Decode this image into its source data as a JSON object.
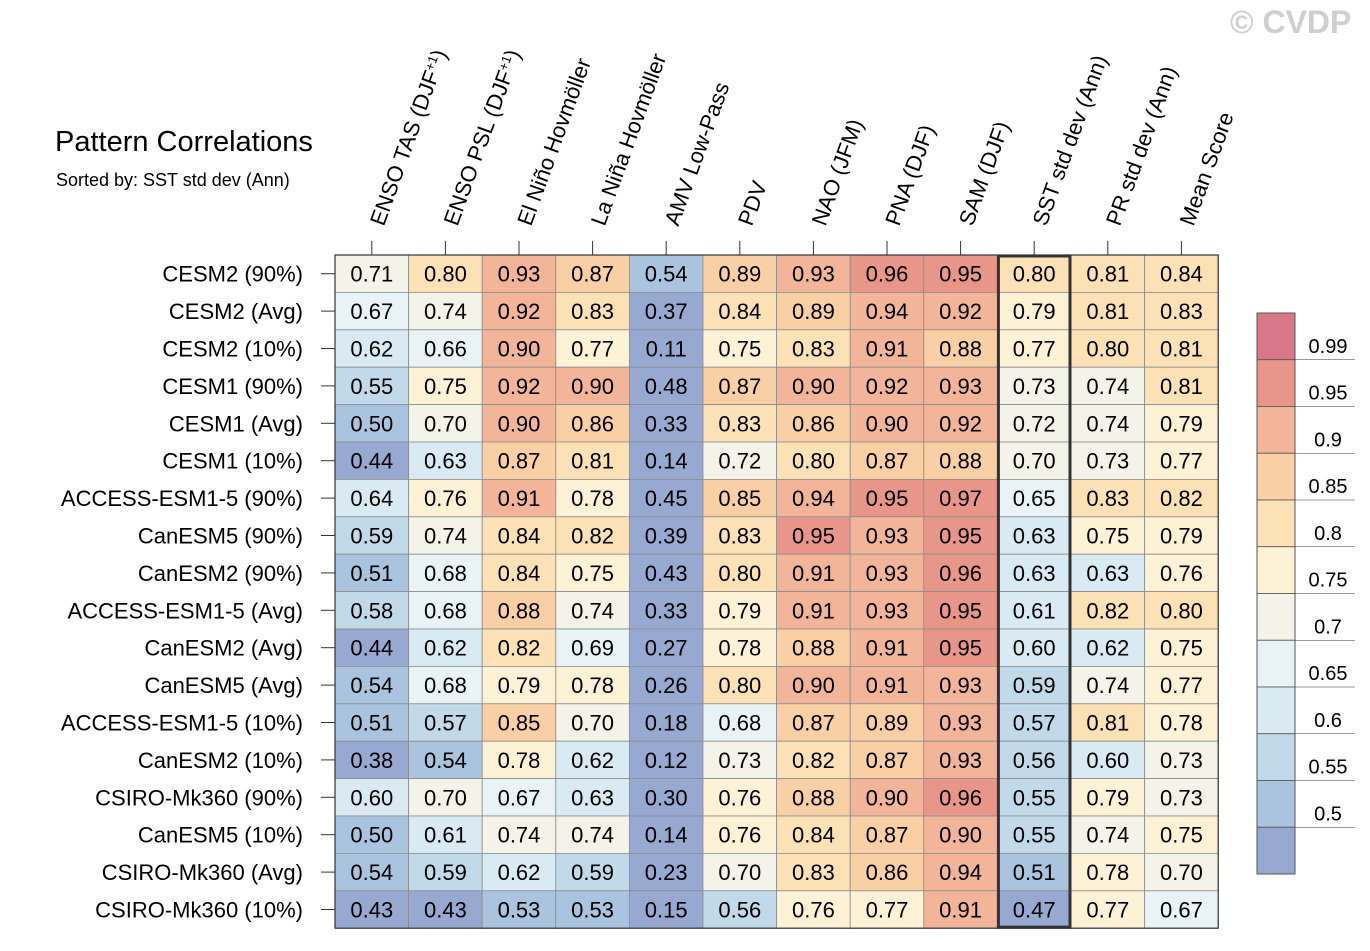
{
  "watermark": "© CVDP",
  "title": "Pattern Correlations",
  "subtitle": "Sorted by: SST std dev (Ann)",
  "chart_data": {
    "type": "heatmap",
    "columns": [
      "ENSO TAS (DJF+1)",
      "ENSO PSL (DJF+1)",
      "El Niño Hovmöller",
      "La Niña Hovmöller",
      "AMV Low-Pass",
      "PDV",
      "NAO (JFM)",
      "PNA (DJF)",
      "SAM (DJF)",
      "SST std dev (Ann)",
      "PR std dev (Ann)",
      "Mean Score"
    ],
    "column_labels": [
      {
        "main": "ENSO TAS (DJF",
        "sup": "+1",
        "tail": ")"
      },
      {
        "main": "ENSO PSL (DJF",
        "sup": "+1",
        "tail": ")"
      },
      {
        "main": "El Niño Hovmöller",
        "sup": "",
        "tail": ""
      },
      {
        "main": "La Niña Hovmöller",
        "sup": "",
        "tail": ""
      },
      {
        "main": "AMV Low-Pass",
        "sup": "",
        "tail": ""
      },
      {
        "main": "PDV",
        "sup": "",
        "tail": ""
      },
      {
        "main": "NAO (JFM)",
        "sup": "",
        "tail": ""
      },
      {
        "main": "PNA (DJF)",
        "sup": "",
        "tail": ""
      },
      {
        "main": "SAM (DJF)",
        "sup": "",
        "tail": ""
      },
      {
        "main": "SST std dev (Ann)",
        "sup": "",
        "tail": ""
      },
      {
        "main": "PR std dev (Ann)",
        "sup": "",
        "tail": ""
      },
      {
        "main": "Mean Score",
        "sup": "",
        "tail": ""
      }
    ],
    "rows": [
      "CESM2 (90%)",
      "CESM2 (Avg)",
      "CESM2 (10%)",
      "CESM1 (90%)",
      "CESM1 (Avg)",
      "CESM1 (10%)",
      "ACCESS-ESM1-5 (90%)",
      "CanESM5 (90%)",
      "CanESM2 (90%)",
      "ACCESS-ESM1-5 (Avg)",
      "CanESM2 (Avg)",
      "CanESM5 (Avg)",
      "ACCESS-ESM1-5 (10%)",
      "CanESM2 (10%)",
      "CSIRO-Mk360 (90%)",
      "CanESM5 (10%)",
      "CSIRO-Mk360 (Avg)",
      "CSIRO-Mk360 (10%)"
    ],
    "values": [
      [
        "0.71",
        "0.80",
        "0.93",
        "0.87",
        "0.54",
        "0.89",
        "0.93",
        "0.96",
        "0.95",
        "0.80",
        "0.81",
        "0.84"
      ],
      [
        "0.67",
        "0.74",
        "0.92",
        "0.83",
        "0.37",
        "0.84",
        "0.89",
        "0.94",
        "0.92",
        "0.79",
        "0.81",
        "0.83"
      ],
      [
        "0.62",
        "0.66",
        "0.90",
        "0.77",
        "0.11",
        "0.75",
        "0.83",
        "0.91",
        "0.88",
        "0.77",
        "0.80",
        "0.81"
      ],
      [
        "0.55",
        "0.75",
        "0.92",
        "0.90",
        "0.48",
        "0.87",
        "0.90",
        "0.92",
        "0.93",
        "0.73",
        "0.74",
        "0.81"
      ],
      [
        "0.50",
        "0.70",
        "0.90",
        "0.86",
        "0.33",
        "0.83",
        "0.86",
        "0.90",
        "0.92",
        "0.72",
        "0.74",
        "0.79"
      ],
      [
        "0.44",
        "0.63",
        "0.87",
        "0.81",
        "0.14",
        "0.72",
        "0.80",
        "0.87",
        "0.88",
        "0.70",
        "0.73",
        "0.77"
      ],
      [
        "0.64",
        "0.76",
        "0.91",
        "0.78",
        "0.45",
        "0.85",
        "0.94",
        "0.95",
        "0.97",
        "0.65",
        "0.83",
        "0.82"
      ],
      [
        "0.59",
        "0.74",
        "0.84",
        "0.82",
        "0.39",
        "0.83",
        "0.95",
        "0.93",
        "0.95",
        "0.63",
        "0.75",
        "0.79"
      ],
      [
        "0.51",
        "0.68",
        "0.84",
        "0.75",
        "0.43",
        "0.80",
        "0.91",
        "0.93",
        "0.96",
        "0.63",
        "0.63",
        "0.76"
      ],
      [
        "0.58",
        "0.68",
        "0.88",
        "0.74",
        "0.33",
        "0.79",
        "0.91",
        "0.93",
        "0.95",
        "0.61",
        "0.82",
        "0.80"
      ],
      [
        "0.44",
        "0.62",
        "0.82",
        "0.69",
        "0.27",
        "0.78",
        "0.88",
        "0.91",
        "0.95",
        "0.60",
        "0.62",
        "0.75"
      ],
      [
        "0.54",
        "0.68",
        "0.79",
        "0.78",
        "0.26",
        "0.80",
        "0.90",
        "0.91",
        "0.93",
        "0.59",
        "0.74",
        "0.77"
      ],
      [
        "0.51",
        "0.57",
        "0.85",
        "0.70",
        "0.18",
        "0.68",
        "0.87",
        "0.89",
        "0.93",
        "0.57",
        "0.81",
        "0.78"
      ],
      [
        "0.38",
        "0.54",
        "0.78",
        "0.62",
        "0.12",
        "0.73",
        "0.82",
        "0.87",
        "0.93",
        "0.56",
        "0.60",
        "0.73"
      ],
      [
        "0.60",
        "0.70",
        "0.67",
        "0.63",
        "0.30",
        "0.76",
        "0.88",
        "0.90",
        "0.96",
        "0.55",
        "0.79",
        "0.73"
      ],
      [
        "0.50",
        "0.61",
        "0.74",
        "0.74",
        "0.14",
        "0.76",
        "0.84",
        "0.87",
        "0.90",
        "0.55",
        "0.74",
        "0.75"
      ],
      [
        "0.54",
        "0.59",
        "0.62",
        "0.59",
        "0.23",
        "0.70",
        "0.83",
        "0.86",
        "0.94",
        "0.51",
        "0.78",
        "0.70"
      ],
      [
        "0.43",
        "0.43",
        "0.53",
        "0.53",
        "0.15",
        "0.56",
        "0.76",
        "0.77",
        "0.91",
        "0.47",
        "0.77",
        "0.67"
      ]
    ],
    "highlighted_column": "SST std dev (Ann)",
    "colorbar": {
      "labels": [
        "0.99",
        "0.95",
        "0.9",
        "0.85",
        "0.8",
        "0.75",
        "0.7",
        "0.65",
        "0.6",
        "0.55",
        "0.5"
      ],
      "levels": [
        0.5,
        0.55,
        0.6,
        0.65,
        0.7,
        0.75,
        0.8,
        0.85,
        0.9,
        0.95,
        0.99
      ],
      "colors": [
        "#98a9d1",
        "#aac3df",
        "#c2d9ea",
        "#d9eaf2",
        "#e9f3f6",
        "#f3f3ea",
        "#fdf1d6",
        "#fce1b6",
        "#f9cfa6",
        "#f3b59a",
        "#e9968a",
        "#d8778a"
      ]
    }
  }
}
